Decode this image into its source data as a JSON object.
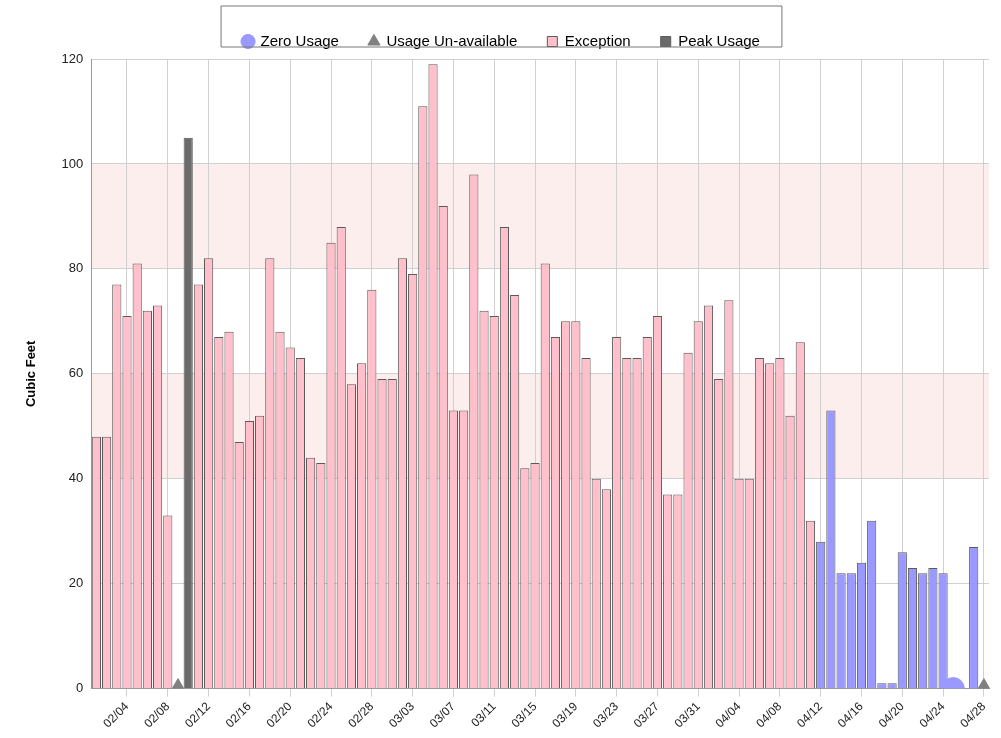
{
  "chart_data": {
    "type": "bar",
    "ylabel": "Cubic Feet",
    "categories": [
      null,
      null,
      null,
      "02/04",
      null,
      null,
      null,
      "02/08",
      null,
      null,
      null,
      "02/12",
      null,
      null,
      null,
      "02/16",
      null,
      null,
      null,
      "02/20",
      null,
      null,
      null,
      "02/24",
      null,
      null,
      null,
      "02/28",
      null,
      null,
      null,
      "03/03",
      null,
      null,
      null,
      "03/07",
      null,
      null,
      null,
      "03/11",
      null,
      null,
      null,
      "03/15",
      null,
      null,
      null,
      "03/19",
      null,
      null,
      null,
      "03/23",
      null,
      null,
      null,
      "03/27",
      null,
      null,
      null,
      "03/31",
      null,
      null,
      null,
      "04/04",
      null,
      null,
      null,
      "04/08",
      null,
      null,
      null,
      "04/12",
      null,
      null,
      null,
      "04/16",
      null,
      null,
      null,
      "04/20",
      null,
      null,
      null,
      "04/24",
      null,
      null,
      null,
      "04/28"
    ],
    "series": [
      {
        "name": "Zero Usage",
        "type": "scatter",
        "marker": "circle",
        "color": "#9999ff",
        "values": [
          null,
          null,
          null,
          null,
          null,
          null,
          null,
          null,
          null,
          null,
          null,
          null,
          null,
          null,
          null,
          null,
          null,
          null,
          null,
          null,
          null,
          null,
          null,
          null,
          null,
          null,
          null,
          null,
          null,
          null,
          null,
          null,
          null,
          null,
          null,
          null,
          null,
          null,
          null,
          null,
          null,
          null,
          null,
          null,
          null,
          null,
          null,
          null,
          null,
          null,
          null,
          null,
          null,
          null,
          null,
          null,
          null,
          null,
          null,
          null,
          null,
          null,
          null,
          null,
          null,
          null,
          null,
          null,
          null,
          null,
          null,
          null,
          null,
          null,
          null,
          null,
          null,
          null,
          null,
          null,
          null,
          null,
          null,
          null,
          0,
          null,
          null,
          null
        ]
      },
      {
        "name": "Usage Un-available",
        "type": "scatter",
        "marker": "triangle",
        "color": "#808080",
        "values": [
          null,
          null,
          null,
          null,
          null,
          null,
          null,
          null,
          0,
          null,
          null,
          null,
          null,
          null,
          null,
          null,
          null,
          null,
          null,
          null,
          null,
          null,
          null,
          null,
          null,
          null,
          null,
          null,
          null,
          null,
          null,
          null,
          null,
          null,
          null,
          null,
          null,
          null,
          null,
          null,
          null,
          null,
          null,
          null,
          null,
          null,
          null,
          null,
          null,
          null,
          null,
          null,
          null,
          null,
          null,
          null,
          null,
          null,
          null,
          null,
          null,
          null,
          null,
          null,
          null,
          null,
          null,
          null,
          null,
          null,
          null,
          null,
          null,
          null,
          null,
          null,
          null,
          null,
          null,
          null,
          null,
          null,
          null,
          null,
          null,
          null,
          null,
          0
        ]
      },
      {
        "name": "Exception",
        "color": "#ffc0cb",
        "values": [
          48,
          48,
          77,
          71,
          81,
          72,
          73,
          33,
          null,
          null,
          77,
          82,
          67,
          68,
          47,
          51,
          52,
          82,
          68,
          65,
          63,
          44,
          43,
          85,
          88,
          58,
          62,
          76,
          59,
          59,
          82,
          79,
          111,
          119,
          92,
          53,
          53,
          98,
          72,
          71,
          88,
          75,
          42,
          43,
          81,
          67,
          70,
          70,
          63,
          40,
          38,
          67,
          63,
          63,
          67,
          71,
          37,
          37,
          64,
          70,
          73,
          59,
          74,
          40,
          40,
          63,
          62,
          63,
          52,
          66,
          32,
          null,
          null,
          null,
          null,
          null,
          null,
          null,
          null,
          null,
          null,
          null,
          null,
          null,
          null,
          null,
          null,
          null
        ]
      },
      {
        "name": "Peak Usage",
        "color": "#6b6b6b",
        "values": [
          null,
          null,
          null,
          null,
          null,
          null,
          null,
          null,
          null,
          105,
          null,
          null,
          null,
          null,
          null,
          null,
          null,
          null,
          null,
          null,
          null,
          null,
          null,
          null,
          null,
          null,
          null,
          null,
          null,
          null,
          null,
          null,
          null,
          null,
          null,
          null,
          null,
          null,
          null,
          null,
          null,
          null,
          null,
          null,
          null,
          null,
          null,
          null,
          null,
          null,
          null,
          null,
          null,
          null,
          null,
          null,
          null,
          null,
          null,
          null,
          null,
          null,
          null,
          null,
          null,
          null,
          null,
          null,
          null,
          null,
          null,
          null,
          null,
          null,
          null,
          null,
          null,
          null,
          null,
          null,
          null,
          null,
          null,
          null,
          null,
          null,
          null,
          null
        ]
      },
      {
        "color": "#9999ff",
        "values": [
          null,
          null,
          null,
          null,
          null,
          null,
          null,
          null,
          null,
          null,
          null,
          null,
          null,
          null,
          null,
          null,
          null,
          null,
          null,
          null,
          null,
          null,
          null,
          null,
          null,
          null,
          null,
          null,
          null,
          null,
          null,
          null,
          null,
          null,
          null,
          null,
          null,
          null,
          null,
          null,
          null,
          null,
          null,
          null,
          null,
          null,
          null,
          null,
          null,
          null,
          null,
          null,
          null,
          null,
          null,
          null,
          null,
          null,
          null,
          null,
          null,
          null,
          null,
          null,
          null,
          null,
          null,
          null,
          null,
          null,
          null,
          28,
          53,
          22,
          22,
          24,
          32,
          1,
          1,
          26,
          23,
          22,
          23,
          22,
          null,
          null,
          27,
          null
        ]
      }
    ],
    "ylim": [
      0,
      120
    ],
    "yticks": [
      0,
      20,
      40,
      60,
      80,
      100,
      120
    ],
    "grid": true,
    "legend": "top",
    "bands": [
      {
        "axis": "y",
        "from": 40,
        "to": 60,
        "color": "#fdeeee"
      },
      {
        "axis": "y",
        "from": 80,
        "to": 100,
        "color": "#fdeeee"
      }
    ]
  }
}
